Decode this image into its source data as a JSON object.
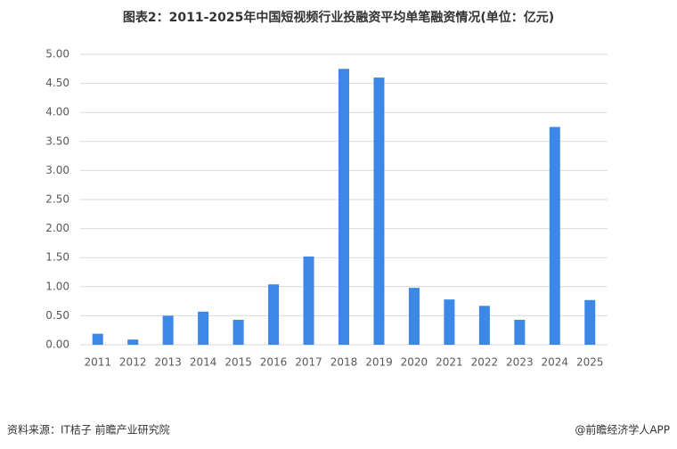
{
  "chart_data": {
    "type": "bar",
    "title": "图表2：2011-2025年中国短视频行业投融资平均单笔融资情况(单位：亿元)",
    "categories": [
      "2011",
      "2012",
      "2013",
      "2014",
      "2015",
      "2016",
      "2017",
      "2018",
      "2019",
      "2020",
      "2021",
      "2022",
      "2023",
      "2024",
      "2025"
    ],
    "values": [
      0.19,
      0.09,
      0.5,
      0.57,
      0.43,
      1.04,
      1.52,
      4.75,
      4.6,
      0.98,
      0.78,
      0.67,
      0.43,
      3.75,
      0.77
    ],
    "color": "#3d87e6",
    "ylim": [
      0,
      5
    ],
    "yticks": [
      {
        "value": 0,
        "label": "0.00"
      },
      {
        "value": 0.5,
        "label": "0.50"
      },
      {
        "value": 1,
        "label": "1.00"
      },
      {
        "value": 1.5,
        "label": "1.50"
      },
      {
        "value": 2,
        "label": "2.00"
      },
      {
        "value": 2.5,
        "label": "2.50"
      },
      {
        "value": 3,
        "label": "3.00"
      },
      {
        "value": 3.5,
        "label": "3.50"
      },
      {
        "value": 4,
        "label": "4.00"
      },
      {
        "value": 4.5,
        "label": "4.50"
      },
      {
        "value": 5,
        "label": "5.00"
      }
    ],
    "grid": true,
    "source": "资料来源：IT桔子 前瞻产业研究院",
    "credit": "@前瞻经济学人APP"
  }
}
